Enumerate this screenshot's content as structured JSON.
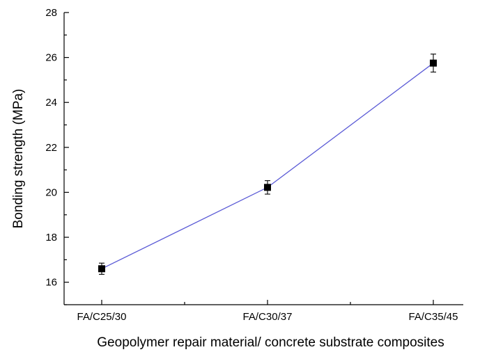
{
  "chart_data": {
    "type": "line",
    "title": "",
    "xlabel": "Geopolymer repair material/ concrete substrate composites",
    "ylabel": "Bonding strength (MPa)",
    "categories": [
      "FA/C25/30",
      "FA/C30/37",
      "FA/C35/45"
    ],
    "series": [
      {
        "values": [
          16.6,
          20.22,
          25.75
        ],
        "errors": [
          0.25,
          0.3,
          0.4
        ],
        "color": "#5b5bd6",
        "marker": "square"
      }
    ],
    "ylim": [
      15,
      28
    ],
    "yticks": [
      16,
      18,
      20,
      22,
      24,
      26,
      28
    ],
    "grid": false,
    "legend": "none"
  }
}
